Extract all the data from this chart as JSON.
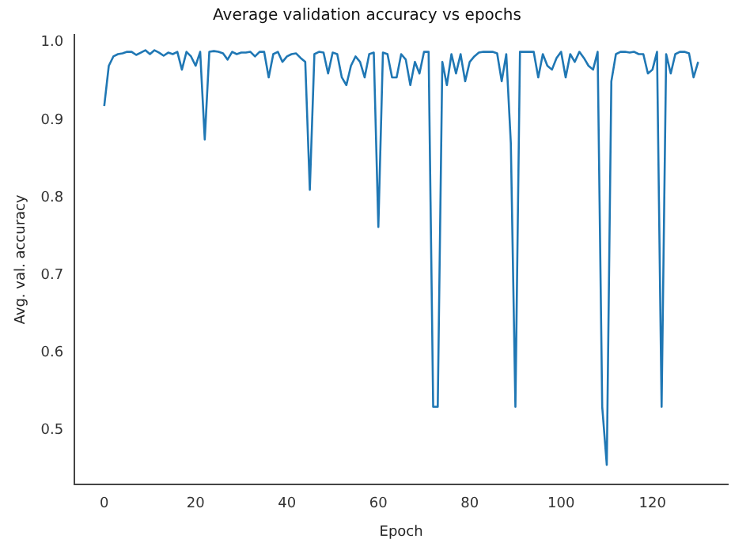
{
  "chart_data": {
    "type": "line",
    "title": "Average validation accuracy vs epochs",
    "xlabel": "Epoch",
    "ylabel": "Avg. val. accuracy",
    "x": [
      0,
      1,
      2,
      3,
      4,
      5,
      6,
      7,
      8,
      9,
      10,
      11,
      12,
      13,
      14,
      15,
      16,
      17,
      18,
      19,
      20,
      21,
      22,
      23,
      24,
      25,
      26,
      27,
      28,
      29,
      30,
      31,
      32,
      33,
      34,
      35,
      36,
      37,
      38,
      39,
      40,
      41,
      42,
      43,
      44,
      45,
      46,
      47,
      48,
      49,
      50,
      51,
      52,
      53,
      54,
      55,
      56,
      57,
      58,
      59,
      60,
      61,
      62,
      63,
      64,
      65,
      66,
      67,
      68,
      69,
      70,
      71,
      72,
      73,
      74,
      75,
      76,
      77,
      78,
      79,
      80,
      81,
      82,
      83,
      84,
      85,
      86,
      87,
      88,
      89,
      90,
      91,
      92,
      93,
      94,
      95,
      96,
      97,
      98,
      99,
      100,
      101,
      102,
      103,
      104,
      105,
      106,
      107,
      108,
      109,
      110,
      111,
      112,
      113,
      114,
      115,
      116,
      117,
      118,
      119,
      120,
      121,
      122,
      123,
      124,
      125,
      126,
      127,
      128,
      129,
      130
    ],
    "series": [
      {
        "color": "#1f77b4",
        "values": [
          0.918,
          0.97,
          0.982,
          0.985,
          0.986,
          0.988,
          0.988,
          0.984,
          0.987,
          0.99,
          0.985,
          0.99,
          0.987,
          0.983,
          0.987,
          0.985,
          0.988,
          0.965,
          0.988,
          0.982,
          0.97,
          0.988,
          0.875,
          0.988,
          0.989,
          0.988,
          0.986,
          0.978,
          0.988,
          0.985,
          0.987,
          0.987,
          0.988,
          0.982,
          0.988,
          0.988,
          0.955,
          0.985,
          0.988,
          0.975,
          0.982,
          0.985,
          0.986,
          0.98,
          0.975,
          0.81,
          0.985,
          0.988,
          0.987,
          0.96,
          0.987,
          0.985,
          0.955,
          0.945,
          0.97,
          0.982,
          0.975,
          0.955,
          0.985,
          0.987,
          0.762,
          0.987,
          0.985,
          0.955,
          0.955,
          0.985,
          0.978,
          0.945,
          0.975,
          0.96,
          0.988,
          0.988,
          0.53,
          0.53,
          0.975,
          0.945,
          0.985,
          0.96,
          0.985,
          0.95,
          0.975,
          0.982,
          0.987,
          0.988,
          0.988,
          0.988,
          0.986,
          0.95,
          0.985,
          0.87,
          0.53,
          0.988,
          0.988,
          0.988,
          0.988,
          0.955,
          0.985,
          0.97,
          0.965,
          0.98,
          0.988,
          0.955,
          0.985,
          0.975,
          0.988,
          0.98,
          0.97,
          0.965,
          0.988,
          0.53,
          0.455,
          0.95,
          0.985,
          0.988,
          0.988,
          0.987,
          0.988,
          0.985,
          0.985,
          0.96,
          0.965,
          0.988,
          0.53,
          0.985,
          0.96,
          0.985,
          0.988,
          0.988,
          0.986,
          0.955,
          0.975
        ]
      }
    ],
    "xlim": [
      -6.5,
      136.5
    ],
    "xticks": [
      0,
      20,
      40,
      60,
      80,
      100,
      120
    ],
    "ylim": [
      0.43,
      1.01
    ],
    "yticks": [
      0.5,
      0.6,
      0.7,
      0.8,
      0.9,
      {
        "value": 1,
        "label": "1.0"
      }
    ],
    "grid": false,
    "legend": false,
    "marker": "none",
    "line_style": "solid"
  }
}
